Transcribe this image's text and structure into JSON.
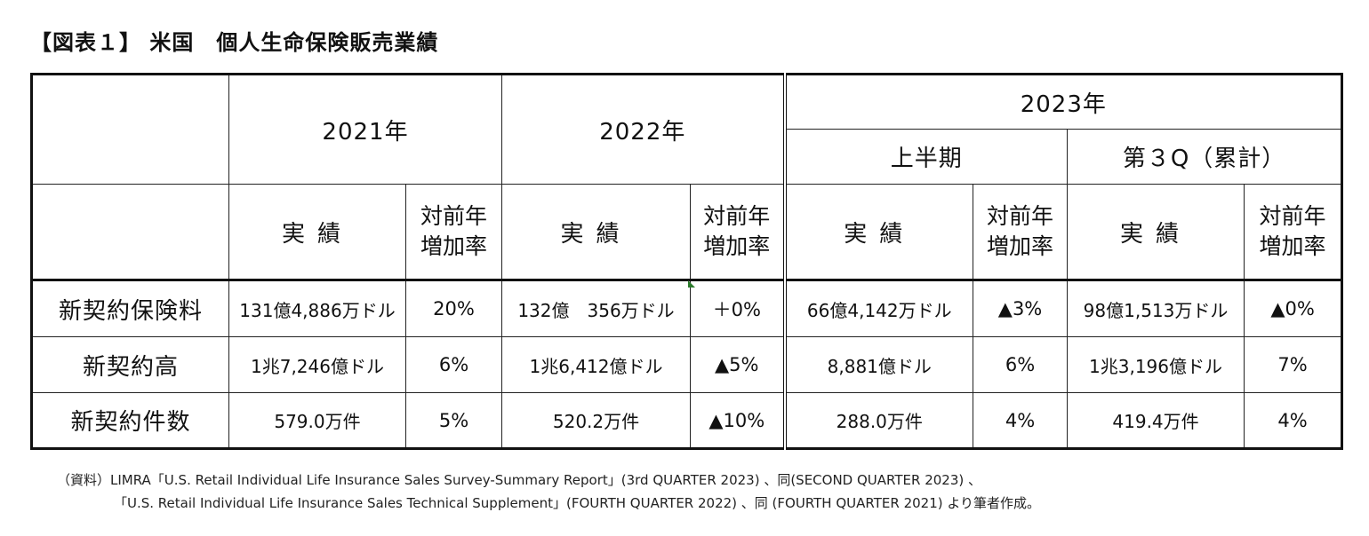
{
  "title": "【図表１】 米国　個人生命保険販売業績",
  "header": {
    "years": [
      "2021年",
      "2022年",
      "2023年"
    ],
    "sub_2023": [
      "上半期",
      "第３Q（累計）"
    ],
    "actual_label": "実績",
    "rate_label_line1": "対前年",
    "rate_label_line2": "増加率"
  },
  "rows": [
    {
      "label": "新契約保険料",
      "cells": [
        "131億4,886万ドル",
        "20%",
        "132億　356万ドル",
        "＋0%",
        "66億4,142万ドル",
        "▲3%",
        "98億1,513万ドル",
        "▲0%"
      ]
    },
    {
      "label": "新契約高",
      "cells": [
        "1兆7,246億ドル",
        "6%",
        "1兆6,412億ドル",
        "▲5%",
        "8,881億ドル",
        "6%",
        "1兆3,196億ドル",
        "7%"
      ]
    },
    {
      "label": "新契約件数",
      "cells": [
        "579.0万件",
        "5%",
        "520.2万件",
        "▲10%",
        "288.0万件",
        "4%",
        "419.4万件",
        "4%"
      ]
    }
  ],
  "notes": {
    "line1": "（資料）LIMRA「U.S. Retail Individual Life Insurance Sales Survey-Summary Report」(3rd QUARTER 2023) 、同(SECOND QUARTER 2023) 、",
    "line2": "「U.S. Retail Individual Life Insurance Sales Technical Supplement」(FOURTH QUARTER 2022) 、同 (FOURTH QUARTER 2021) より筆者作成。"
  }
}
